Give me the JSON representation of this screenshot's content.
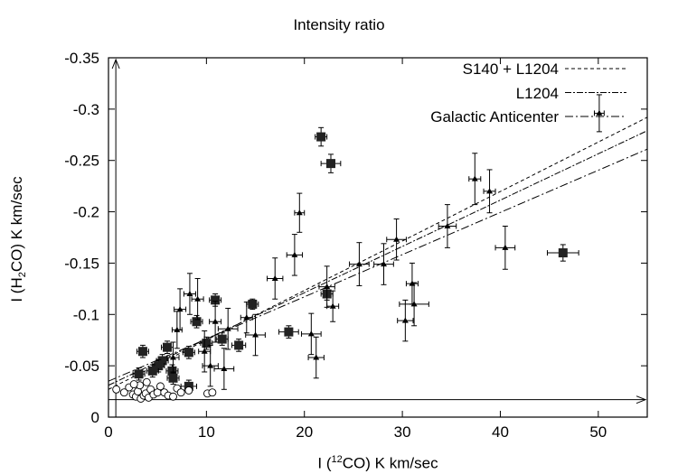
{
  "chart_data": {
    "type": "scatter",
    "title": "Intensity ratio",
    "xlabel": {
      "pre": "I (",
      "sup": "12",
      "post": "CO) K km/sec"
    },
    "ylabel": {
      "pre": "I (H",
      "sub": "2",
      "post": "CO) K km/sec"
    },
    "xlim": [
      0,
      55
    ],
    "ylim": [
      0,
      -0.35
    ],
    "x_ticks": [
      "0",
      "10",
      "20",
      "30",
      "40",
      "50"
    ],
    "x_tick_values": [
      0,
      10,
      20,
      30,
      40,
      50
    ],
    "y_ticks": [
      "0",
      "-0.05",
      "-0.1",
      "-0.15",
      "-0.2",
      "-0.25",
      "-0.3",
      "-0.35"
    ],
    "y_tick_values": [
      0,
      -0.05,
      -0.1,
      -0.15,
      -0.2,
      -0.25,
      -0.3,
      -0.35
    ],
    "grid": false,
    "legend_position": "top-right",
    "fits": [
      {
        "name": "S140 + L1204",
        "dash": "4,3",
        "x": [
          0,
          55
        ],
        "y": [
          -0.027,
          -0.292
        ]
      },
      {
        "name": "L1204",
        "dash": "7,2,2,2",
        "x": [
          0,
          55
        ],
        "y": [
          -0.031,
          -0.279
        ]
      },
      {
        "name": "Galactic Anticenter",
        "dash": "9,3,2,3",
        "x": [
          0,
          55
        ],
        "y": [
          -0.035,
          -0.261
        ]
      }
    ],
    "series": [
      {
        "marker": "square",
        "points": [
          [
            21.7,
            -0.273,
            0.6,
            0.009
          ],
          [
            22.7,
            -0.247,
            1.0,
            0.009
          ],
          [
            22.3,
            -0.12,
            0.6,
            0.006
          ],
          [
            46.4,
            -0.16,
            1.6,
            0.008
          ],
          [
            18.4,
            -0.083,
            1.0,
            0.006
          ],
          [
            14.7,
            -0.11,
            0.6,
            0.005
          ],
          [
            13.3,
            -0.07,
            0.7,
            0.006
          ],
          [
            11.6,
            -0.076,
            0.6,
            0.006
          ],
          [
            10.9,
            -0.114,
            0.6,
            0.006
          ],
          [
            10.0,
            -0.072,
            0.6,
            0.006
          ],
          [
            9.0,
            -0.093,
            0.6,
            0.006
          ],
          [
            8.2,
            -0.063,
            0.6,
            0.006
          ],
          [
            8.2,
            -0.03,
            0.8,
            0.006
          ],
          [
            6.5,
            -0.045,
            0.6,
            0.006
          ],
          [
            6.0,
            -0.068,
            0.6,
            0.006
          ],
          [
            5.5,
            -0.055,
            0.6,
            0.006
          ],
          [
            5.1,
            -0.05,
            0.6,
            0.006
          ],
          [
            4.5,
            -0.045,
            0.6,
            0.006
          ],
          [
            3.5,
            -0.064,
            0.6,
            0.006
          ],
          [
            3.1,
            -0.042,
            0.6,
            0.006
          ],
          [
            6.6,
            -0.038,
            0.6,
            0.006
          ]
        ]
      },
      {
        "marker": "triangle",
        "points": [
          [
            50.1,
            -0.296,
            0.5,
            0.018
          ],
          [
            37.4,
            -0.232,
            0.6,
            0.025
          ],
          [
            38.9,
            -0.22,
            0.6,
            0.021
          ],
          [
            40.5,
            -0.165,
            1.0,
            0.021
          ],
          [
            34.6,
            -0.186,
            0.9,
            0.021
          ],
          [
            29.4,
            -0.173,
            1.0,
            0.02
          ],
          [
            25.6,
            -0.149,
            1.0,
            0.021
          ],
          [
            28.1,
            -0.149,
            1.0,
            0.02
          ],
          [
            31.0,
            -0.13,
            0.6,
            0.02
          ],
          [
            31.2,
            -0.11,
            1.5,
            0.021
          ],
          [
            30.3,
            -0.094,
            0.8,
            0.02
          ],
          [
            19.5,
            -0.199,
            0.5,
            0.019
          ],
          [
            19.0,
            -0.158,
            0.8,
            0.02
          ],
          [
            17.0,
            -0.135,
            0.8,
            0.02
          ],
          [
            22.3,
            -0.127,
            0.8,
            0.02
          ],
          [
            22.9,
            -0.108,
            0.6,
            0.015
          ],
          [
            20.7,
            -0.081,
            1.0,
            0.02
          ],
          [
            21.2,
            -0.058,
            0.8,
            0.02
          ],
          [
            15.0,
            -0.08,
            1.0,
            0.02
          ],
          [
            14.1,
            -0.097,
            0.6,
            0.015
          ],
          [
            12.2,
            -0.086,
            1.0,
            0.02
          ],
          [
            11.8,
            -0.047,
            1.0,
            0.02
          ],
          [
            10.9,
            -0.093,
            0.6,
            0.02
          ],
          [
            10.4,
            -0.05,
            0.8,
            0.02
          ],
          [
            8.3,
            -0.12,
            0.6,
            0.02
          ],
          [
            9.1,
            -0.115,
            0.6,
            0.02
          ],
          [
            7.3,
            -0.105,
            0.6,
            0.02
          ],
          [
            9.8,
            -0.064,
            0.6,
            0.02
          ],
          [
            6.6,
            -0.058,
            0.6,
            0.015
          ],
          [
            7.0,
            -0.085,
            0.5,
            0.018
          ]
        ]
      },
      {
        "marker": "circle",
        "points": [
          [
            0.8,
            -0.027
          ],
          [
            1.6,
            -0.024
          ],
          [
            2.1,
            -0.029
          ],
          [
            2.5,
            -0.022
          ],
          [
            2.8,
            -0.02
          ],
          [
            3.0,
            -0.025
          ],
          [
            3.2,
            -0.031
          ],
          [
            3.3,
            -0.018
          ],
          [
            3.6,
            -0.021
          ],
          [
            3.8,
            -0.023
          ],
          [
            4.1,
            -0.019
          ],
          [
            4.3,
            -0.027
          ],
          [
            4.6,
            -0.022
          ],
          [
            5.0,
            -0.024
          ],
          [
            5.3,
            -0.03
          ],
          [
            5.7,
            -0.024
          ],
          [
            6.1,
            -0.021
          ],
          [
            6.6,
            -0.02
          ],
          [
            7.0,
            -0.028
          ],
          [
            7.4,
            -0.024
          ],
          [
            8.2,
            -0.026
          ],
          [
            10.1,
            -0.023
          ],
          [
            10.6,
            -0.024
          ],
          [
            2.6,
            -0.032
          ],
          [
            3.9,
            -0.034
          ]
        ]
      }
    ]
  }
}
